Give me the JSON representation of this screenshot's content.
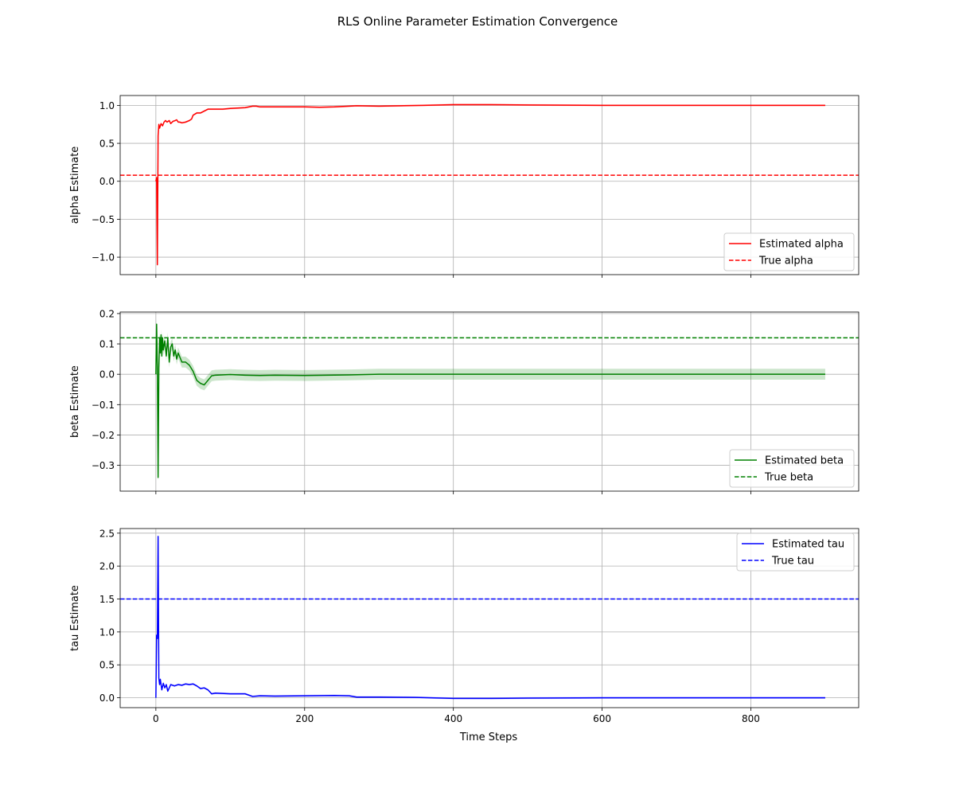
{
  "figure": {
    "title": "RLS Online Parameter Estimation Convergence",
    "xlabel": "Time Steps"
  },
  "chart_data": [
    {
      "type": "line",
      "ylabel": "alpha Estimate",
      "xlim": [
        -48,
        945
      ],
      "ylim": [
        -1.23,
        1.13
      ],
      "xticks": [
        0,
        200,
        400,
        600,
        800
      ],
      "yticks": [
        -1.0,
        -0.5,
        0.0,
        0.5,
        1.0
      ],
      "ytick_labels": [
        "−1.0",
        "−0.5",
        "0.0",
        "0.5",
        "1.0"
      ],
      "color": "#ff0000",
      "grid": true,
      "legend_position": "lower-right",
      "estimate": {
        "name": "Estimated alpha",
        "x": [
          0,
          1,
          2,
          3,
          4,
          5,
          7,
          9,
          11,
          13,
          15,
          18,
          20,
          23,
          26,
          28,
          30,
          32,
          35,
          40,
          45,
          48,
          50,
          55,
          60,
          70,
          80,
          90,
          100,
          120,
          130,
          135,
          140,
          160,
          180,
          200,
          220,
          240,
          260,
          270,
          300,
          330,
          360,
          400,
          450,
          500,
          600,
          700,
          800,
          900
        ],
        "y": [
          0.0,
          0.05,
          -1.1,
          0.6,
          0.75,
          0.7,
          0.76,
          0.73,
          0.78,
          0.8,
          0.78,
          0.8,
          0.76,
          0.79,
          0.8,
          0.81,
          0.78,
          0.78,
          0.77,
          0.78,
          0.8,
          0.82,
          0.87,
          0.9,
          0.9,
          0.95,
          0.95,
          0.95,
          0.96,
          0.97,
          0.99,
          0.99,
          0.98,
          0.98,
          0.98,
          0.98,
          0.975,
          0.98,
          0.99,
          0.995,
          0.99,
          0.995,
          1.0,
          1.01,
          1.01,
          1.005,
          1.0,
          1.0,
          1.0,
          1.0
        ],
        "band_halfwidth": 0.012
      },
      "true_value": {
        "name": "True alpha",
        "value": 0.08
      }
    },
    {
      "type": "line",
      "ylabel": "beta Estimate",
      "xlim": [
        -48,
        945
      ],
      "ylim": [
        -0.385,
        0.205
      ],
      "xticks": [
        0,
        200,
        400,
        600,
        800
      ],
      "yticks": [
        -0.3,
        -0.2,
        -0.1,
        0.0,
        0.1,
        0.2
      ],
      "ytick_labels": [
        "−0.3",
        "−0.2",
        "−0.1",
        "0.0",
        "0.1",
        "0.2"
      ],
      "color": "#008000",
      "grid": true,
      "legend_position": "lower-right",
      "estimate": {
        "name": "Estimated beta",
        "x": [
          0,
          1,
          2,
          3,
          4,
          5,
          6,
          7,
          8,
          9,
          10,
          12,
          14,
          16,
          18,
          20,
          22,
          24,
          26,
          28,
          30,
          35,
          40,
          45,
          50,
          55,
          60,
          65,
          70,
          75,
          80,
          100,
          120,
          140,
          160,
          200,
          260,
          300,
          400,
          500,
          600,
          700,
          800,
          900
        ],
        "y": [
          0.0,
          0.165,
          0.03,
          -0.34,
          0.02,
          0.12,
          0.07,
          0.13,
          0.06,
          0.12,
          0.08,
          0.11,
          0.06,
          0.12,
          0.04,
          0.09,
          0.1,
          0.06,
          0.08,
          0.05,
          0.07,
          0.04,
          0.04,
          0.03,
          0.01,
          -0.02,
          -0.03,
          -0.035,
          -0.02,
          -0.005,
          -0.003,
          -0.001,
          -0.003,
          -0.004,
          -0.003,
          -0.004,
          -0.002,
          0.0,
          0.0,
          0.0,
          0.0,
          0.0,
          0.0,
          0.0
        ],
        "band_halfwidth": 0.018
      },
      "true_value": {
        "name": "True beta",
        "value": 0.12
      }
    },
    {
      "type": "line",
      "ylabel": "tau Estimate",
      "xlim": [
        -48,
        945
      ],
      "ylim": [
        -0.15,
        2.57
      ],
      "xticks": [
        0,
        200,
        400,
        600,
        800
      ],
      "xtick_labels": [
        "0",
        "200",
        "400",
        "600",
        "800"
      ],
      "yticks": [
        0.0,
        0.5,
        1.0,
        1.5,
        2.0,
        2.5
      ],
      "ytick_labels": [
        "0.0",
        "0.5",
        "1.0",
        "1.5",
        "2.0",
        "2.5"
      ],
      "color": "#0000ff",
      "grid": true,
      "legend_position": "upper-right",
      "estimate": {
        "name": "Estimated tau",
        "x": [
          0,
          1,
          2,
          3,
          4,
          5,
          6,
          8,
          10,
          12,
          14,
          16,
          18,
          20,
          25,
          30,
          35,
          40,
          45,
          50,
          55,
          60,
          65,
          70,
          75,
          80,
          100,
          120,
          130,
          140,
          160,
          200,
          240,
          260,
          270,
          300,
          350,
          400,
          450,
          500,
          600,
          700,
          800,
          900
        ],
        "y": [
          0.0,
          0.95,
          0.9,
          2.45,
          0.3,
          0.2,
          0.28,
          0.12,
          0.22,
          0.15,
          0.2,
          0.1,
          0.15,
          0.2,
          0.18,
          0.2,
          0.19,
          0.21,
          0.2,
          0.21,
          0.18,
          0.14,
          0.15,
          0.12,
          0.06,
          0.07,
          0.06,
          0.06,
          0.02,
          0.03,
          0.025,
          0.03,
          0.035,
          0.03,
          0.01,
          0.01,
          0.005,
          -0.01,
          -0.01,
          -0.005,
          0.0,
          0.0,
          0.0,
          0.0
        ],
        "band_halfwidth": 0.015
      },
      "true_value": {
        "name": "True tau",
        "value": 1.5
      }
    }
  ]
}
